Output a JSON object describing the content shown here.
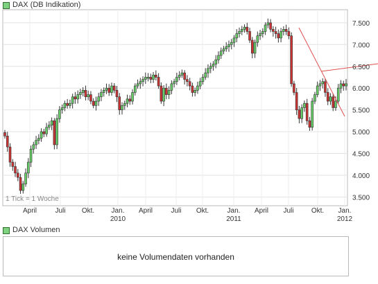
{
  "legend": {
    "main": "DAX (DB Indikation)",
    "volume": "DAX Volumen",
    "swatch_color": "#7fd27f"
  },
  "chart_note": "1 Tick = 1 Woche",
  "volume_message": "keine Volumendaten vorhanden",
  "chart_data": {
    "type": "candlestick",
    "title": "DAX (DB Indikation)",
    "interval": "weekly",
    "y_ticks": [
      "3.500",
      "4.000",
      "4.500",
      "5.000",
      "5.500",
      "6.000",
      "6.500",
      "7.000",
      "7.500"
    ],
    "y_tick_values": [
      3500,
      4000,
      4500,
      5000,
      5500,
      6000,
      6500,
      7000,
      7500
    ],
    "ylim": [
      3300,
      7800
    ],
    "x_ticks": [
      "April",
      "Juli",
      "Okt.",
      "Jan.",
      "April",
      "Juli",
      "Okt.",
      "Jan.",
      "April",
      "Juli",
      "Okt.",
      "Jan."
    ],
    "x_years": [
      "2010",
      "2011",
      "2012"
    ],
    "grid": true,
    "up_color": "#66cc66",
    "down_color": "#cc3333",
    "trendline_color": "#e05050",
    "close_series": [
      4900,
      4650,
      4300,
      4200,
      4050,
      3950,
      3650,
      3800,
      4050,
      4300,
      4600,
      4700,
      4800,
      4850,
      5000,
      4950,
      5100,
      5150,
      5250,
      4700,
      5300,
      5500,
      5550,
      5650,
      5600,
      5650,
      5800,
      5750,
      5850,
      5900,
      5950,
      5800,
      5850,
      5700,
      5600,
      5700,
      5800,
      5900,
      5950,
      6000,
      5900,
      6050,
      5950,
      5800,
      5500,
      5600,
      5650,
      5750,
      5700,
      5900,
      6050,
      6100,
      6150,
      6200,
      6250,
      6250,
      6200,
      6300,
      6250,
      6050,
      5700,
      6000,
      5850,
      5950,
      6100,
      6150,
      6250,
      6300,
      6350,
      6200,
      6150,
      6050,
      5900,
      5950,
      6050,
      6150,
      6250,
      6350,
      6450,
      6500,
      6550,
      6650,
      6750,
      6850,
      6900,
      6950,
      7000,
      7050,
      7150,
      7250,
      7300,
      7350,
      7400,
      7300,
      7100,
      6800,
      7050,
      7200,
      7250,
      7300,
      7450,
      7500,
      7350,
      7300,
      7250,
      7150,
      7300,
      7350,
      7300,
      7200,
      6100,
      5900,
      5500,
      5300,
      5550,
      5650,
      5250,
      5100,
      5700,
      5850,
      6050,
      6100,
      6150,
      5900,
      5700,
      5800,
      5550,
      5700,
      6000,
      6100,
      6050,
      6100
    ]
  }
}
